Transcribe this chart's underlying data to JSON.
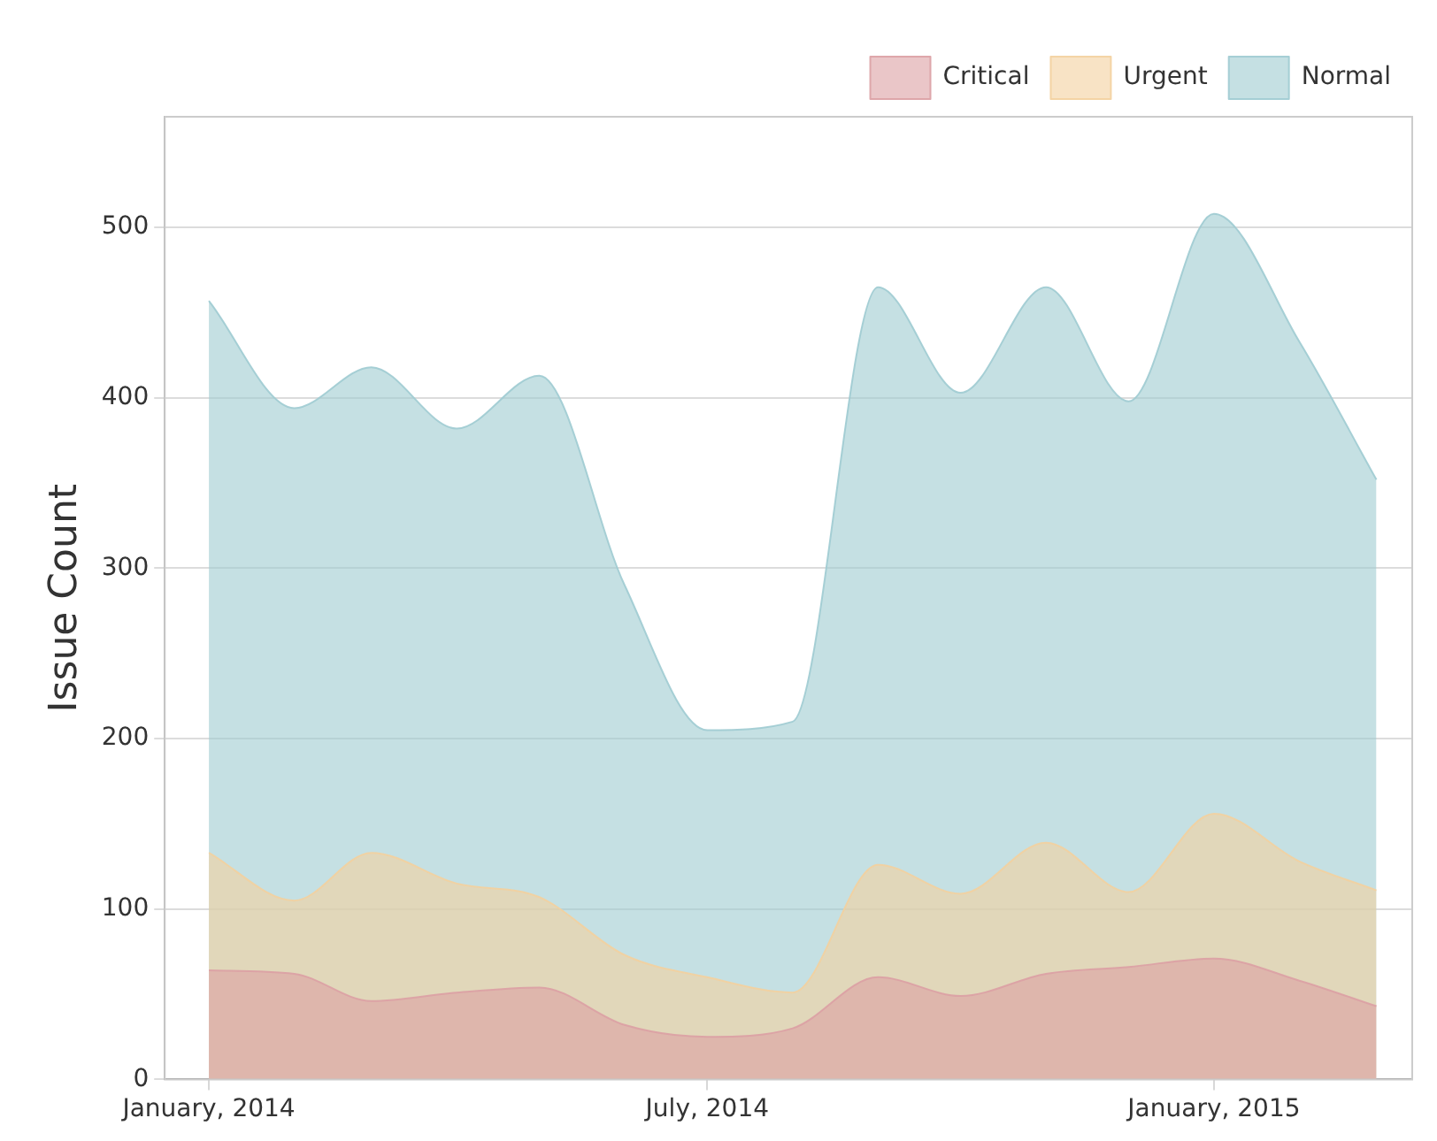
{
  "chart_data": {
    "type": "area",
    "ylabel": "Issue Count",
    "x": [
      "2014-01-01",
      "2014-02-01",
      "2014-03-01",
      "2014-04-01",
      "2014-05-01",
      "2014-06-01",
      "2014-07-01",
      "2014-08-01",
      "2014-09-01",
      "2014-10-01",
      "2014-11-01",
      "2014-12-01",
      "2015-01-01",
      "2015-02-01",
      "2015-03-01"
    ],
    "series": [
      {
        "name": "Critical",
        "color": "#dca0a4",
        "values": [
          64,
          62,
          46,
          51,
          54,
          32,
          25,
          30,
          60,
          49,
          62,
          66,
          71,
          58,
          43
        ]
      },
      {
        "name": "Urgent",
        "color": "#f3d09e",
        "values": [
          133,
          105,
          133,
          115,
          107,
          73,
          60,
          51,
          126,
          109,
          139,
          110,
          156,
          128,
          111
        ]
      },
      {
        "name": "Normal",
        "color": "#9ecbd1",
        "values": [
          457,
          394,
          418,
          382,
          413,
          290,
          205,
          210,
          465,
          403,
          465,
          398,
          508,
          433,
          352
        ]
      }
    ],
    "xlim": [
      "2013-12-16",
      "2015-03-14"
    ],
    "xticks": [
      {
        "value": "2014-01-01",
        "label": "January, 2014"
      },
      {
        "value": "2014-07-01",
        "label": "July, 2014"
      },
      {
        "value": "2015-01-01",
        "label": "January, 2015"
      }
    ],
    "ylim": [
      0,
      565
    ],
    "yticks": [
      0,
      100,
      200,
      300,
      400,
      500
    ],
    "grid": "y",
    "legend": "top right"
  }
}
